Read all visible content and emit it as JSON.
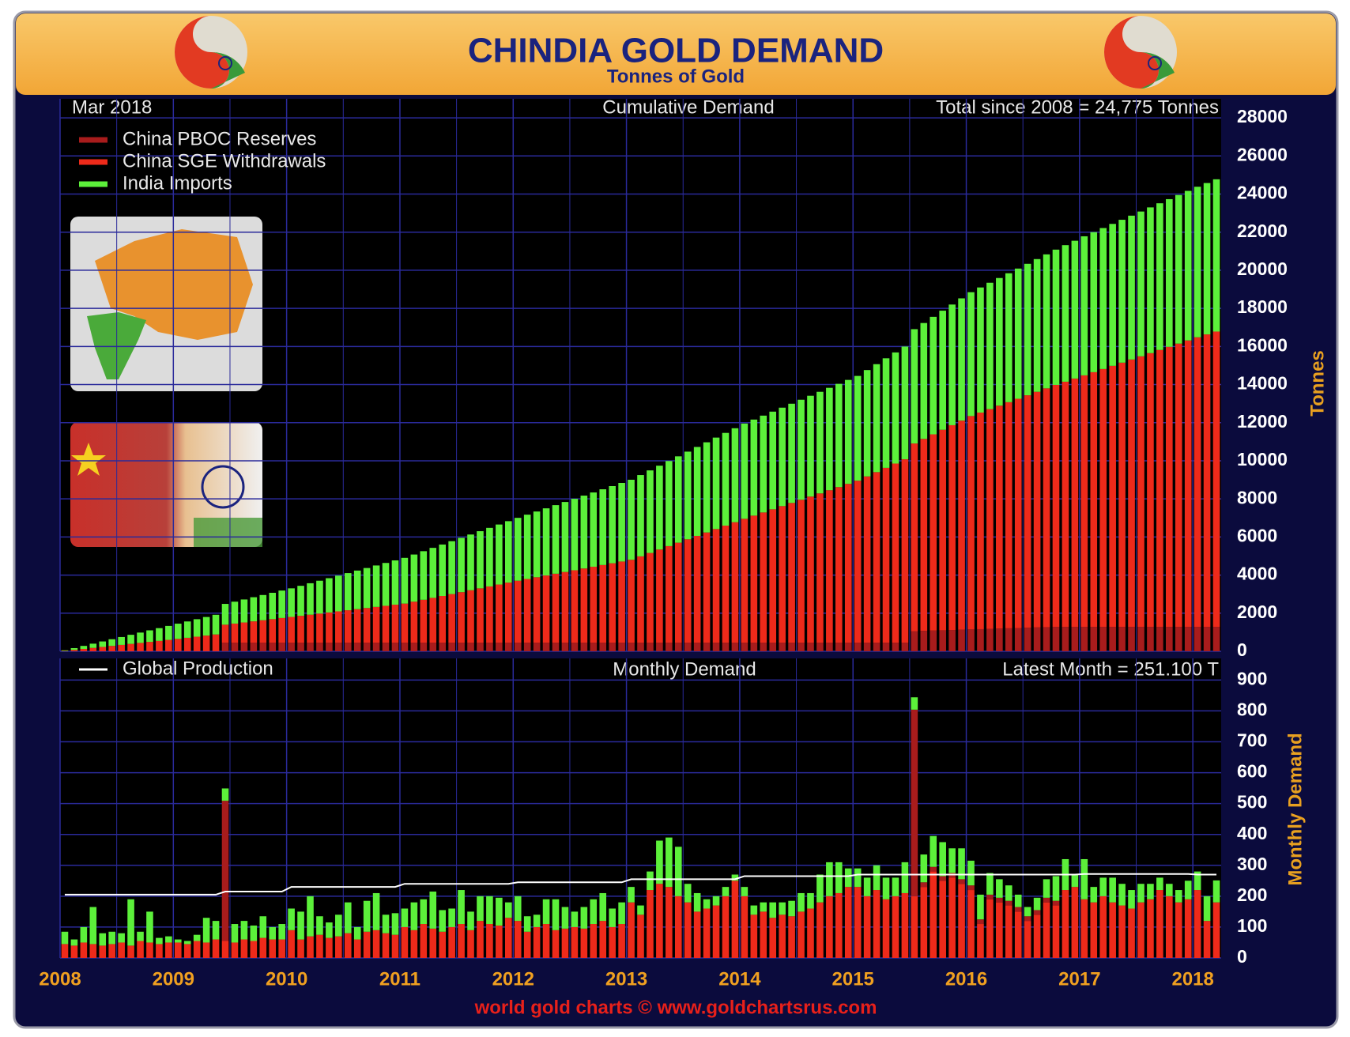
{
  "chart_data": [
    {
      "type": "bar",
      "stacked": true,
      "title": "CHINDIA GOLD DEMAND",
      "subtitle": "Tonnes of Gold",
      "date": "Mar 2018",
      "heading": "Cumulative Demand",
      "annotation": "Total since 2008 = 24,775 Tonnes",
      "ylabel": "Tonnes",
      "ylim": [
        0,
        29000
      ],
      "yticks": [
        0,
        2000,
        4000,
        6000,
        8000,
        10000,
        12000,
        14000,
        16000,
        18000,
        20000,
        22000,
        24000,
        26000,
        28000
      ],
      "grid": true,
      "legend": "upper left",
      "series": [
        {
          "name": "China PBOC Reserves",
          "color": "#a81c1c",
          "values": [
            0,
            0,
            0,
            0,
            0,
            0,
            0,
            0,
            0,
            0,
            0,
            0,
            0,
            0,
            0,
            0,
            0,
            454,
            454,
            454,
            454,
            454,
            454,
            454,
            454,
            454,
            454,
            454,
            454,
            454,
            454,
            454,
            454,
            454,
            454,
            454,
            454,
            454,
            454,
            454,
            454,
            454,
            454,
            454,
            454,
            454,
            454,
            454,
            454,
            454,
            454,
            454,
            454,
            454,
            454,
            454,
            454,
            454,
            454,
            454,
            454,
            454,
            454,
            454,
            454,
            454,
            454,
            454,
            454,
            454,
            454,
            454,
            454,
            454,
            454,
            454,
            454,
            454,
            454,
            454,
            454,
            454,
            454,
            454,
            454,
            454,
            454,
            454,
            454,
            454,
            1058,
            1073,
            1088,
            1103,
            1118,
            1133,
            1148,
            1163,
            1178,
            1193,
            1208,
            1223,
            1238,
            1253,
            1268,
            1283,
            1283,
            1283,
            1283,
            1283,
            1283,
            1283,
            1283,
            1283,
            1283,
            1283,
            1283,
            1283,
            1283,
            1283,
            1283,
            1283,
            1283
          ]
        },
        {
          "name": "China SGE Withdrawals",
          "color": "#ee2a1a",
          "values": [
            20,
            73,
            125,
            178,
            230,
            283,
            335,
            388,
            440,
            493,
            545,
            598,
            650,
            708,
            767,
            825,
            883,
            942,
            1000,
            1058,
            1117,
            1175,
            1233,
            1292,
            1350,
            1408,
            1467,
            1525,
            1583,
            1642,
            1700,
            1758,
            1817,
            1875,
            1933,
            1992,
            2050,
            2150,
            2250,
            2350,
            2450,
            2550,
            2650,
            2750,
            2850,
            2950,
            3050,
            3150,
            3250,
            3342,
            3433,
            3525,
            3617,
            3708,
            3800,
            3892,
            3983,
            4075,
            4167,
            4258,
            4350,
            4529,
            4708,
            4888,
            5067,
            5246,
            5425,
            5604,
            5783,
            5963,
            6142,
            6321,
            6500,
            6667,
            6833,
            7000,
            7167,
            7333,
            7500,
            7667,
            7833,
            8000,
            8167,
            8333,
            8500,
            8725,
            8950,
            9175,
            9400,
            9625,
            9850,
            10075,
            10300,
            10525,
            10750,
            10975,
            11200,
            11367,
            11533,
            11700,
            11867,
            12033,
            12200,
            12367,
            12533,
            12700,
            12867,
            13033,
            13200,
            13367,
            13533,
            13700,
            13867,
            14033,
            14200,
            14367,
            14533,
            14700,
            14867,
            15033,
            15200,
            15350,
            15500
          ]
        },
        {
          "name": "India Imports",
          "color": "#5cf03a",
          "values": [
            30,
            94,
            158,
            222,
            286,
            350,
            414,
            478,
            542,
            606,
            670,
            734,
            800,
            858,
            917,
            975,
            1033,
            1092,
            1150,
            1208,
            1267,
            1325,
            1383,
            1442,
            1500,
            1575,
            1650,
            1725,
            1800,
            1875,
            1950,
            2025,
            2100,
            2175,
            2250,
            2325,
            2400,
            2475,
            2550,
            2625,
            2700,
            2775,
            2850,
            2925,
            3000,
            3075,
            3150,
            3225,
            3300,
            3375,
            3450,
            3525,
            3600,
            3675,
            3750,
            3825,
            3900,
            3975,
            4050,
            4125,
            4200,
            4267,
            4333,
            4400,
            4467,
            4533,
            4600,
            4667,
            4733,
            4800,
            4867,
            4933,
            5000,
            5042,
            5083,
            5125,
            5167,
            5208,
            5250,
            5292,
            5333,
            5375,
            5417,
            5458,
            5500,
            5583,
            5667,
            5750,
            5833,
            5917,
            6000,
            6083,
            6167,
            6250,
            6333,
            6417,
            6500,
            6567,
            6633,
            6700,
            6767,
            6833,
            6900,
            6967,
            7033,
            7100,
            7167,
            7233,
            7300,
            7350,
            7400,
            7450,
            7500,
            7550,
            7600,
            7650,
            7700,
            7750,
            7800,
            7850,
            7900,
            7946,
            7992
          ]
        }
      ]
    },
    {
      "type": "bar",
      "stacked": true,
      "heading": "Monthly Demand",
      "annotation": "Latest Month = 251.100 T",
      "ylabel": "Monthly Demand",
      "ylim": [
        0,
        970
      ],
      "yticks": [
        0,
        100,
        200,
        300,
        400,
        500,
        600,
        700,
        800,
        900
      ],
      "grid": true,
      "legend": "upper left",
      "source": "world gold charts © www.goldchartsrus.com",
      "categories": [
        "2008",
        null,
        null,
        null,
        null,
        null,
        null,
        null,
        null,
        null,
        null,
        null,
        "2009",
        null,
        null,
        null,
        null,
        null,
        null,
        null,
        null,
        null,
        null,
        null,
        "2010",
        null,
        null,
        null,
        null,
        null,
        null,
        null,
        null,
        null,
        null,
        null,
        "2011",
        null,
        null,
        null,
        null,
        null,
        null,
        null,
        null,
        null,
        null,
        null,
        "2012",
        null,
        null,
        null,
        null,
        null,
        null,
        null,
        null,
        null,
        null,
        null,
        "2013",
        null,
        null,
        null,
        null,
        null,
        null,
        null,
        null,
        null,
        null,
        null,
        "2014",
        null,
        null,
        null,
        null,
        null,
        null,
        null,
        null,
        null,
        null,
        null,
        "2015",
        null,
        null,
        null,
        null,
        null,
        null,
        null,
        null,
        null,
        null,
        null,
        "2016",
        null,
        null,
        null,
        null,
        null,
        null,
        null,
        null,
        null,
        null,
        null,
        "2017",
        null,
        null,
        null,
        null,
        null,
        null,
        null,
        null,
        null,
        null,
        null,
        "2018",
        null,
        null
      ],
      "series": [
        {
          "color": "#ee2a1a",
          "values": [
            45,
            40,
            50,
            45,
            40,
            45,
            50,
            40,
            55,
            50,
            45,
            50,
            50,
            45,
            55,
            50,
            60,
            55,
            50,
            60,
            55,
            65,
            60,
            60,
            90,
            60,
            70,
            75,
            65,
            70,
            80,
            60,
            85,
            90,
            80,
            75,
            100,
            90,
            110,
            95,
            85,
            100,
            110,
            90,
            120,
            110,
            105,
            130,
            120,
            85,
            100,
            110,
            90,
            95,
            100,
            95,
            110,
            120,
            100,
            110,
            180,
            140,
            220,
            240,
            230,
            200,
            180,
            150,
            160,
            170,
            200,
            250,
            200,
            140,
            150,
            130,
            140,
            135,
            150,
            160,
            180,
            200,
            210,
            230,
            230,
            200,
            220,
            190,
            200,
            210,
            200,
            230,
            280,
            250,
            260,
            240,
            220,
            110,
            190,
            180,
            170,
            150,
            120,
            140,
            180,
            170,
            220,
            230,
            190,
            180,
            200,
            180,
            170,
            160,
            180,
            190,
            220,
            200,
            180,
            190,
            220,
            120,
            180
          ]
        },
        {
          "color": "#a81c1c",
          "values": [
            0,
            0,
            0,
            0,
            0,
            0,
            0,
            0,
            0,
            0,
            0,
            0,
            0,
            0,
            0,
            0,
            0,
            454,
            0,
            0,
            0,
            0,
            0,
            0,
            0,
            0,
            0,
            0,
            0,
            0,
            0,
            0,
            0,
            0,
            0,
            0,
            0,
            0,
            0,
            0,
            0,
            0,
            0,
            0,
            0,
            0,
            0,
            0,
            0,
            0,
            0,
            0,
            0,
            0,
            0,
            0,
            0,
            0,
            0,
            0,
            0,
            0,
            0,
            0,
            0,
            0,
            0,
            0,
            0,
            0,
            0,
            0,
            0,
            0,
            0,
            0,
            0,
            0,
            0,
            0,
            0,
            0,
            0,
            0,
            0,
            0,
            0,
            0,
            0,
            0,
            604,
            15,
            15,
            15,
            15,
            15,
            15,
            15,
            15,
            15,
            15,
            15,
            15,
            15,
            15,
            15,
            0,
            0,
            0,
            0,
            0,
            0,
            0,
            0,
            0,
            0,
            0,
            0,
            0,
            0,
            0,
            0,
            0
          ]
        },
        {
          "color": "#5cf03a",
          "values": [
            40,
            20,
            50,
            120,
            40,
            40,
            30,
            150,
            30,
            100,
            20,
            20,
            10,
            10,
            20,
            80,
            60,
            40,
            60,
            60,
            50,
            70,
            40,
            50,
            70,
            90,
            130,
            60,
            50,
            70,
            100,
            40,
            100,
            120,
            60,
            70,
            60,
            90,
            80,
            120,
            70,
            60,
            110,
            60,
            80,
            90,
            90,
            50,
            80,
            50,
            40,
            80,
            100,
            70,
            50,
            70,
            80,
            90,
            60,
            70,
            50,
            30,
            60,
            140,
            160,
            160,
            60,
            60,
            30,
            30,
            30,
            20,
            30,
            30,
            30,
            50,
            40,
            50,
            60,
            50,
            90,
            110,
            100,
            60,
            60,
            60,
            80,
            70,
            60,
            100,
            40,
            90,
            100,
            110,
            80,
            100,
            80,
            80,
            70,
            60,
            50,
            40,
            30,
            40,
            60,
            80,
            100,
            40,
            130,
            50,
            60,
            80,
            70,
            60,
            60,
            50,
            40,
            40,
            40,
            60,
            60,
            80,
            71.1
          ]
        },
        {
          "name": "Global Production",
          "type": "line",
          "color": "#ffffff",
          "values": [
            205,
            205,
            205,
            205,
            205,
            205,
            205,
            205,
            205,
            205,
            205,
            205,
            205,
            205,
            205,
            205,
            205,
            215,
            215,
            215,
            215,
            215,
            215,
            215,
            230,
            230,
            230,
            230,
            230,
            230,
            230,
            230,
            230,
            230,
            230,
            230,
            240,
            240,
            240,
            240,
            240,
            240,
            240,
            240,
            240,
            240,
            240,
            240,
            245,
            245,
            245,
            245,
            245,
            245,
            245,
            245,
            245,
            245,
            245,
            245,
            255,
            255,
            255,
            255,
            255,
            255,
            255,
            255,
            255,
            255,
            255,
            255,
            265,
            265,
            265,
            265,
            265,
            265,
            265,
            265,
            265,
            265,
            265,
            265,
            270,
            270,
            270,
            270,
            270,
            270,
            270,
            270,
            270,
            270,
            270,
            270,
            270,
            270,
            270,
            270,
            270,
            270,
            270,
            270,
            270,
            270,
            270,
            270,
            272,
            272,
            272,
            272,
            272,
            272,
            272,
            272,
            272,
            272,
            272,
            272,
            270,
            270,
            270
          ]
        }
      ]
    }
  ]
}
